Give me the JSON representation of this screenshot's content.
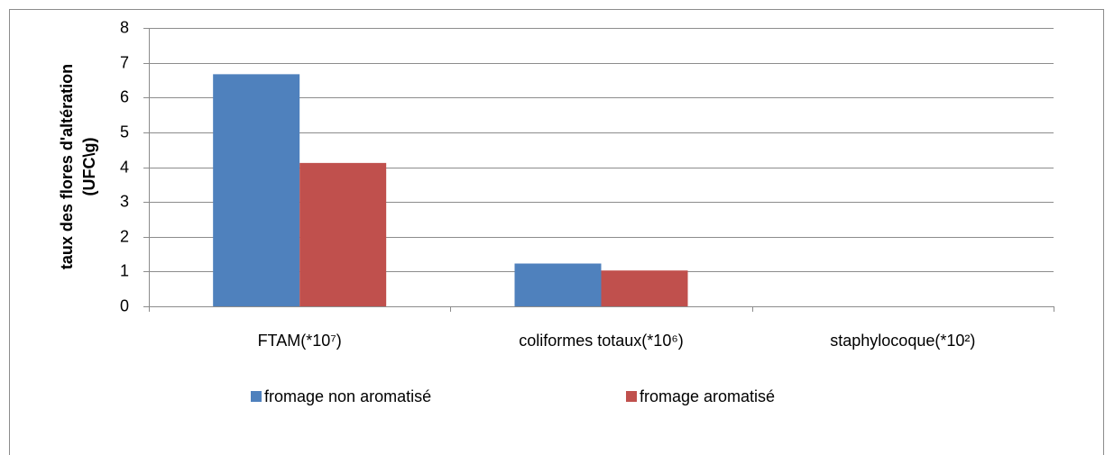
{
  "chart_data": {
    "type": "bar",
    "ylabel": [
      "taux des flores d'altération",
      "(UFC\\g)"
    ],
    "categories": [
      "FTAM(*10⁷)",
      "coliformes totaux(*10⁶)",
      "staphylocoque(*10²)"
    ],
    "series": [
      {
        "name": "fromage non aromatisé",
        "color": "#4f81bd",
        "values": [
          6.67,
          1.23,
          0
        ]
      },
      {
        "name": "fromage aromatisé",
        "color": "#c0504d",
        "values": [
          4.12,
          1.03,
          0
        ]
      }
    ],
    "ylim": [
      0,
      8
    ],
    "yticks": [
      0,
      1,
      2,
      3,
      4,
      5,
      6,
      7,
      8
    ],
    "grid": true,
    "legend": "bottom"
  }
}
